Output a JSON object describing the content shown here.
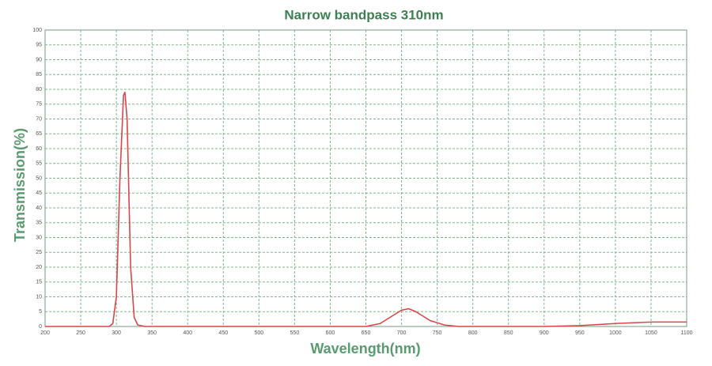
{
  "chart_data": {
    "type": "line",
    "title": "Narrow bandpass 310nm",
    "x_label": "Wavelength(nm)",
    "y_label": "Transmission(%)",
    "x": [
      200,
      250,
      290,
      295,
      300,
      305,
      310,
      312,
      315,
      320,
      325,
      330,
      340,
      400,
      500,
      600,
      650,
      670,
      690,
      700,
      710,
      720,
      740,
      760,
      780,
      850,
      900,
      950,
      1000,
      1050,
      1100
    ],
    "series": [
      {
        "name": "Transmission",
        "color": "#d9464a",
        "values": [
          0,
          0,
          0,
          1,
          10,
          50,
          78,
          79,
          70,
          20,
          3,
          0.5,
          0,
          0,
          0,
          0,
          0,
          1,
          4,
          5.5,
          6,
          5,
          2,
          0.5,
          0,
          0,
          0,
          0.3,
          1,
          1.5,
          1.5
        ]
      }
    ],
    "xlim": [
      200,
      1100
    ],
    "xticks": [
      200,
      250,
      300,
      350,
      400,
      450,
      500,
      550,
      600,
      650,
      700,
      750,
      800,
      850,
      900,
      950,
      1000,
      1050,
      1100
    ],
    "ylim": [
      0,
      100
    ],
    "yticks": [
      0,
      5,
      10,
      15,
      20,
      25,
      30,
      35,
      40,
      45,
      50,
      55,
      60,
      65,
      70,
      75,
      80,
      85,
      90,
      95,
      100
    ],
    "grid": true
  }
}
